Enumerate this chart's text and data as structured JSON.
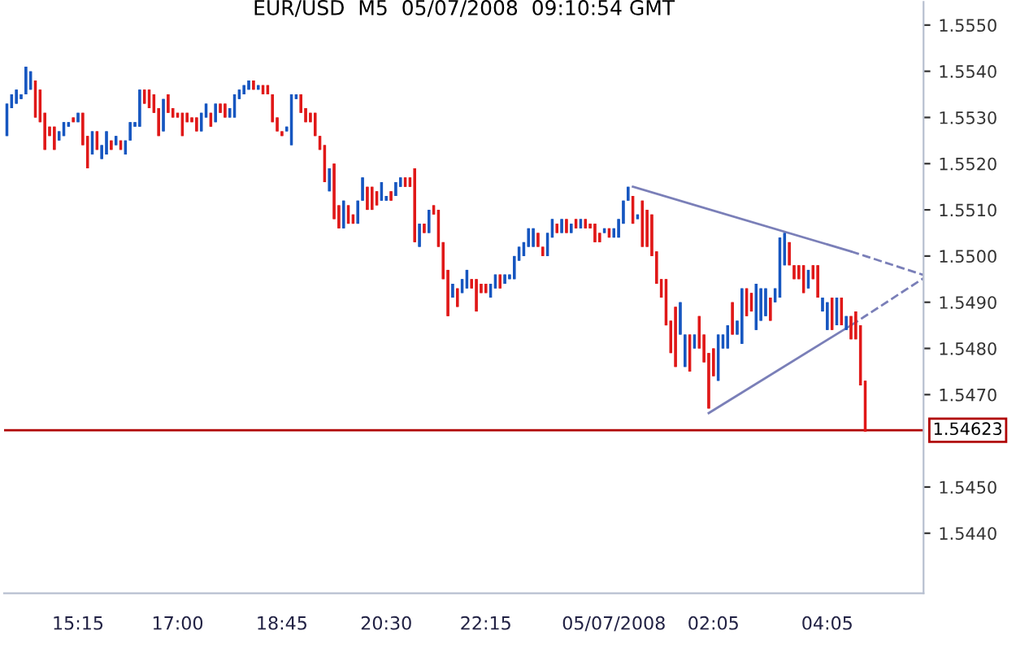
{
  "chart_data": {
    "type": "candlestick",
    "title": "EUR/USD  M5  05/07/2008  09:10:54 GMT",
    "categories": [
      null,
      null,
      null,
      null,
      null,
      null,
      null,
      null,
      null,
      null,
      null,
      null,
      null,
      null,
      null,
      "15:15",
      null,
      null,
      null,
      null,
      null,
      null,
      null,
      null,
      null,
      null,
      null,
      null,
      null,
      null,
      null,
      null,
      null,
      null,
      null,
      null,
      "17:00",
      null,
      null,
      null,
      null,
      null,
      null,
      null,
      null,
      null,
      null,
      null,
      null,
      null,
      null,
      null,
      null,
      null,
      null,
      null,
      null,
      null,
      "18:45",
      null,
      null,
      null,
      null,
      null,
      null,
      null,
      null,
      null,
      null,
      null,
      null,
      null,
      null,
      null,
      null,
      null,
      null,
      null,
      null,
      null,
      "20:30",
      null,
      null,
      null,
      null,
      null,
      null,
      null,
      null,
      null,
      null,
      null,
      null,
      null,
      null,
      null,
      null,
      null,
      null,
      null,
      null,
      "22:15",
      null,
      null,
      null,
      null,
      null,
      null,
      null,
      null,
      null,
      null,
      null,
      null,
      null,
      null,
      null,
      null,
      null,
      null,
      null,
      null,
      null,
      null,
      null,
      null,
      null,
      null,
      "05/07/2008",
      null,
      null,
      null,
      null,
      null,
      null,
      null,
      null,
      null,
      null,
      null,
      null,
      null,
      null,
      null,
      null,
      null,
      null,
      null,
      null,
      "02:05",
      null,
      null,
      null,
      null,
      null,
      null,
      null,
      null,
      null,
      null,
      null,
      null,
      null,
      null,
      null,
      null,
      null,
      null,
      null,
      null,
      null,
      null,
      null,
      "04:05",
      null,
      null,
      null,
      null,
      null,
      null,
      null,
      null
    ],
    "colors": [
      "#1656c0",
      "#1656c0",
      "#1656c0",
      "#1656c0",
      "#1656c0",
      "#1656c0",
      "#e01818",
      "#e01818",
      "#e01818",
      "#e01818",
      "#e01818",
      "#1656c0",
      "#1656c0",
      "#1656c0",
      "#e01818",
      "#1656c0",
      "#e01818",
      "#e01818",
      "#1656c0",
      "#e01818",
      "#1656c0",
      "#1656c0",
      "#e01818",
      "#1656c0",
      "#e01818",
      "#1656c0",
      "#1656c0",
      "#1656c0",
      "#1656c0",
      "#e01818",
      "#e01818",
      "#e01818",
      "#e01818",
      "#1656c0",
      "#e01818",
      "#e01818",
      "#e01818",
      "#e01818",
      "#e01818",
      "#e01818",
      "#e01818",
      "#1656c0",
      "#1656c0",
      "#e01818",
      "#1656c0",
      "#e01818",
      "#e01818",
      "#1656c0",
      "#1656c0",
      "#1656c0",
      "#1656c0",
      "#1656c0",
      "#e01818",
      "#1656c0",
      "#e01818",
      "#e01818",
      "#e01818",
      "#e01818",
      "#e01818",
      "#1656c0",
      "#1656c0",
      "#1656c0",
      "#e01818",
      "#e01818",
      "#e01818",
      "#e01818",
      "#e01818",
      "#e01818",
      "#1656c0",
      "#e01818",
      "#e01818",
      "#1656c0",
      "#e01818",
      "#e01818",
      "#1656c0",
      "#1656c0",
      "#e01818",
      "#e01818",
      "#e01818",
      "#1656c0",
      "#1656c0",
      "#e01818",
      "#1656c0",
      "#1656c0",
      "#e01818",
      "#e01818",
      "#e01818",
      "#1656c0",
      "#e01818",
      "#1656c0",
      "#e01818",
      "#e01818",
      "#e01818",
      "#e01818",
      "#1656c0",
      "#e01818",
      "#1656c0",
      "#1656c0",
      "#e01818",
      "#e01818",
      "#e01818",
      "#e01818",
      "#1656c0",
      "#1656c0",
      "#e01818",
      "#1656c0",
      "#1656c0",
      "#1656c0",
      "#1656c0",
      "#1656c0",
      "#1656c0",
      "#1656c0",
      "#e01818",
      "#e01818",
      "#1656c0",
      "#1656c0",
      "#e01818",
      "#1656c0",
      "#e01818",
      "#1656c0",
      "#e01818",
      "#1656c0",
      "#e01818",
      "#e01818",
      "#e01818",
      "#e01818",
      "#1656c0",
      "#e01818",
      "#1656c0",
      "#1656c0",
      "#1656c0",
      "#1656c0",
      "#e01818",
      "#1656c0",
      "#e01818",
      "#e01818",
      "#e01818",
      "#e01818",
      "#e01818",
      "#e01818",
      "#e01818",
      "#e01818",
      "#1656c0",
      "#1656c0",
      "#e01818",
      "#1656c0",
      "#e01818",
      "#e01818",
      "#e01818",
      "#e01818",
      "#1656c0",
      "#1656c0",
      "#1656c0",
      "#e01818",
      "#1656c0",
      "#1656c0",
      "#e01818",
      "#e01818",
      "#1656c0",
      "#1656c0",
      "#1656c0",
      "#e01818",
      "#1656c0",
      "#1656c0",
      "#1656c0",
      "#e01818",
      "#e01818",
      "#e01818",
      "#e01818",
      "#1656c0",
      "#e01818",
      "#e01818",
      "#1656c0",
      "#1656c0",
      "#e01818",
      "#1656c0",
      "#e01818",
      "#1656c0",
      "#e01818",
      "#e01818",
      "#e01818",
      "#e01818"
    ],
    "ohlc": [
      [
        1.5526,
        1.5533,
        1.5526,
        1.5533
      ],
      [
        1.5532,
        1.5535,
        1.5532,
        1.5535
      ],
      [
        1.5533,
        1.5536,
        1.5533,
        1.5536
      ],
      [
        1.5534,
        1.5535,
        1.5534,
        1.5535
      ],
      [
        1.5535,
        1.5541,
        1.5535,
        1.5541
      ],
      [
        1.5536,
        1.554,
        1.5536,
        1.554
      ],
      [
        1.5538,
        1.5538,
        1.553,
        1.553
      ],
      [
        1.5536,
        1.5536,
        1.5529,
        1.5529
      ],
      [
        1.5531,
        1.5531,
        1.5523,
        1.5523
      ],
      [
        1.5528,
        1.5528,
        1.5526,
        1.5526
      ],
      [
        1.5528,
        1.5528,
        1.5523,
        1.5523
      ],
      [
        1.5525,
        1.5527,
        1.5525,
        1.5527
      ],
      [
        1.5526,
        1.5529,
        1.5526,
        1.5529
      ],
      [
        1.5528,
        1.5529,
        1.5528,
        1.5529
      ],
      [
        1.553,
        1.553,
        1.5529,
        1.5529
      ],
      [
        1.5529,
        1.5531,
        1.5529,
        1.5531
      ],
      [
        1.5531,
        1.5531,
        1.5524,
        1.5524
      ],
      [
        1.5526,
        1.5526,
        1.5519,
        1.5519
      ],
      [
        1.5522,
        1.5527,
        1.5522,
        1.5527
      ],
      [
        1.5527,
        1.5527,
        1.5523,
        1.5523
      ],
      [
        1.5521,
        1.5524,
        1.5521,
        1.5524
      ],
      [
        1.5522,
        1.5527,
        1.5522,
        1.5527
      ],
      [
        1.5525,
        1.5525,
        1.5523,
        1.5523
      ],
      [
        1.5524,
        1.5526,
        1.5524,
        1.5526
      ],
      [
        1.5525,
        1.5525,
        1.5523,
        1.5523
      ],
      [
        1.5522,
        1.5525,
        1.5522,
        1.5525
      ],
      [
        1.5525,
        1.5529,
        1.5525,
        1.5529
      ],
      [
        1.5528,
        1.5529,
        1.5528,
        1.5529
      ],
      [
        1.5528,
        1.5536,
        1.5528,
        1.5536
      ],
      [
        1.5536,
        1.5536,
        1.5533,
        1.5533
      ],
      [
        1.5536,
        1.5536,
        1.5532,
        1.5532
      ],
      [
        1.5535,
        1.5535,
        1.5531,
        1.5531
      ],
      [
        1.5532,
        1.5532,
        1.5526,
        1.5526
      ],
      [
        1.5527,
        1.5534,
        1.5527,
        1.5534
      ],
      [
        1.5535,
        1.5535,
        1.5531,
        1.5531
      ],
      [
        1.5532,
        1.5532,
        1.553,
        1.553
      ],
      [
        1.5531,
        1.5531,
        1.553,
        1.553
      ],
      [
        1.5531,
        1.5531,
        1.5526,
        1.5526
      ],
      [
        1.5531,
        1.5531,
        1.5529,
        1.5529
      ],
      [
        1.553,
        1.553,
        1.5529,
        1.5529
      ],
      [
        1.553,
        1.553,
        1.5527,
        1.5527
      ],
      [
        1.5527,
        1.5531,
        1.5527,
        1.5531
      ],
      [
        1.553,
        1.5533,
        1.553,
        1.5533
      ],
      [
        1.5531,
        1.5531,
        1.5528,
        1.5528
      ],
      [
        1.5529,
        1.5533,
        1.5529,
        1.5533
      ],
      [
        1.5533,
        1.5533,
        1.5531,
        1.5531
      ],
      [
        1.5533,
        1.5533,
        1.553,
        1.553
      ],
      [
        1.553,
        1.5532,
        1.553,
        1.5532
      ],
      [
        1.553,
        1.5535,
        1.553,
        1.5535
      ],
      [
        1.5534,
        1.5536,
        1.5534,
        1.5536
      ],
      [
        1.5535,
        1.5537,
        1.5535,
        1.5537
      ],
      [
        1.5536,
        1.5538,
        1.5536,
        1.5538
      ],
      [
        1.5538,
        1.5538,
        1.5536,
        1.5536
      ],
      [
        1.5536,
        1.5537,
        1.5536,
        1.5537
      ],
      [
        1.5537,
        1.5537,
        1.5535,
        1.5535
      ],
      [
        1.5537,
        1.5537,
        1.5535,
        1.5535
      ],
      [
        1.5535,
        1.5535,
        1.5529,
        1.5529
      ],
      [
        1.553,
        1.553,
        1.5527,
        1.5527
      ],
      [
        1.5527,
        1.5527,
        1.5526,
        1.5526
      ],
      [
        1.5527,
        1.5528,
        1.5527,
        1.5528
      ],
      [
        1.5524,
        1.5535,
        1.5524,
        1.5535
      ],
      [
        1.5534,
        1.5535,
        1.5534,
        1.5535
      ],
      [
        1.5535,
        1.5535,
        1.5531,
        1.5531
      ],
      [
        1.5532,
        1.5532,
        1.5529,
        1.5529
      ],
      [
        1.5531,
        1.5531,
        1.5529,
        1.5529
      ],
      [
        1.5531,
        1.5531,
        1.5526,
        1.5526
      ],
      [
        1.5526,
        1.5526,
        1.5523,
        1.5523
      ],
      [
        1.5524,
        1.5524,
        1.5516,
        1.5516
      ],
      [
        1.5514,
        1.5519,
        1.5514,
        1.5519
      ],
      [
        1.552,
        1.552,
        1.5508,
        1.5508
      ],
      [
        1.5511,
        1.5511,
        1.5506,
        1.5506
      ],
      [
        1.5506,
        1.5512,
        1.5506,
        1.5512
      ],
      [
        1.5511,
        1.5511,
        1.5507,
        1.5507
      ],
      [
        1.5509,
        1.5509,
        1.5507,
        1.5507
      ],
      [
        1.5507,
        1.5512,
        1.5507,
        1.5512
      ],
      [
        1.5512,
        1.5517,
        1.5512,
        1.5517
      ],
      [
        1.5515,
        1.5515,
        1.551,
        1.551
      ],
      [
        1.5515,
        1.5515,
        1.551,
        1.551
      ],
      [
        1.5514,
        1.5514,
        1.5511,
        1.5511
      ],
      [
        1.5512,
        1.5516,
        1.5512,
        1.5516
      ],
      [
        1.5512,
        1.5513,
        1.5512,
        1.5513
      ],
      [
        1.5514,
        1.5514,
        1.5512,
        1.5512
      ],
      [
        1.5513,
        1.5516,
        1.5513,
        1.5516
      ],
      [
        1.5515,
        1.5517,
        1.5515,
        1.5517
      ],
      [
        1.5517,
        1.5517,
        1.5515,
        1.5515
      ],
      [
        1.5517,
        1.5517,
        1.5515,
        1.5515
      ],
      [
        1.5519,
        1.5519,
        1.5503,
        1.5503
      ],
      [
        1.5502,
        1.5507,
        1.5502,
        1.5507
      ],
      [
        1.5507,
        1.5507,
        1.5505,
        1.5505
      ],
      [
        1.5505,
        1.551,
        1.5505,
        1.551
      ],
      [
        1.5511,
        1.5511,
        1.5509,
        1.5509
      ],
      [
        1.551,
        1.551,
        1.5502,
        1.5502
      ],
      [
        1.5503,
        1.5503,
        1.5495,
        1.5495
      ],
      [
        1.5497,
        1.5497,
        1.5487,
        1.5487
      ],
      [
        1.5491,
        1.5494,
        1.5491,
        1.5494
      ],
      [
        1.5493,
        1.5493,
        1.5489,
        1.5489
      ],
      [
        1.5492,
        1.5495,
        1.5492,
        1.5495
      ],
      [
        1.5493,
        1.5497,
        1.5493,
        1.5497
      ],
      [
        1.5495,
        1.5495,
        1.5493,
        1.5493
      ],
      [
        1.5495,
        1.5495,
        1.5488,
        1.5488
      ],
      [
        1.5494,
        1.5494,
        1.5492,
        1.5492
      ],
      [
        1.5494,
        1.5494,
        1.5492,
        1.5492
      ],
      [
        1.5491,
        1.5494,
        1.5491,
        1.5494
      ],
      [
        1.5493,
        1.5496,
        1.5493,
        1.5496
      ],
      [
        1.5496,
        1.5496,
        1.5493,
        1.5493
      ],
      [
        1.5494,
        1.5496,
        1.5494,
        1.5496
      ],
      [
        1.5495,
        1.5496,
        1.5495,
        1.5496
      ],
      [
        1.5495,
        1.55,
        1.5495,
        1.55
      ],
      [
        1.5499,
        1.5502,
        1.5499,
        1.5502
      ],
      [
        1.55,
        1.5503,
        1.55,
        1.5503
      ],
      [
        1.5502,
        1.5506,
        1.5502,
        1.5506
      ],
      [
        1.5502,
        1.5506,
        1.5502,
        1.5506
      ],
      [
        1.5505,
        1.5505,
        1.5502,
        1.5502
      ],
      [
        1.5502,
        1.5502,
        1.55,
        1.55
      ],
      [
        1.55,
        1.5505,
        1.55,
        1.5505
      ],
      [
        1.5504,
        1.5508,
        1.5504,
        1.5508
      ],
      [
        1.5507,
        1.5507,
        1.5505,
        1.5505
      ],
      [
        1.5505,
        1.5508,
        1.5505,
        1.5508
      ],
      [
        1.5508,
        1.5508,
        1.5505,
        1.5505
      ],
      [
        1.5505,
        1.5507,
        1.5505,
        1.5507
      ],
      [
        1.5508,
        1.5508,
        1.5506,
        1.5506
      ],
      [
        1.5506,
        1.5508,
        1.5506,
        1.5508
      ],
      [
        1.5508,
        1.5508,
        1.5506,
        1.5506
      ],
      [
        1.5507,
        1.5507,
        1.5506,
        1.5506
      ],
      [
        1.5507,
        1.5507,
        1.5503,
        1.5503
      ],
      [
        1.5505,
        1.5505,
        1.5503,
        1.5503
      ],
      [
        1.5505,
        1.5506,
        1.5505,
        1.5506
      ],
      [
        1.5506,
        1.5506,
        1.5504,
        1.5504
      ],
      [
        1.5504,
        1.5506,
        1.5504,
        1.5506
      ],
      [
        1.5504,
        1.5508,
        1.5504,
        1.5508
      ],
      [
        1.5507,
        1.5512,
        1.5507,
        1.5512
      ],
      [
        1.5512,
        1.5515,
        1.5512,
        1.5515
      ],
      [
        1.5513,
        1.5513,
        1.5507,
        1.5507
      ],
      [
        1.5508,
        1.5509,
        1.5508,
        1.5509
      ],
      [
        1.5512,
        1.5512,
        1.5502,
        1.5502
      ],
      [
        1.551,
        1.551,
        1.5502,
        1.5502
      ],
      [
        1.5509,
        1.5509,
        1.55,
        1.55
      ],
      [
        1.5501,
        1.5501,
        1.5494,
        1.5494
      ],
      [
        1.5495,
        1.5495,
        1.5491,
        1.5491
      ],
      [
        1.5495,
        1.5495,
        1.5485,
        1.5485
      ],
      [
        1.5486,
        1.5486,
        1.5479,
        1.5479
      ],
      [
        1.5489,
        1.5489,
        1.5476,
        1.5476
      ],
      [
        1.5483,
        1.549,
        1.5483,
        1.549
      ],
      [
        1.5476,
        1.5483,
        1.5476,
        1.5483
      ],
      [
        1.5483,
        1.5483,
        1.5475,
        1.5475
      ],
      [
        1.548,
        1.5483,
        1.548,
        1.5483
      ],
      [
        1.5487,
        1.5487,
        1.548,
        1.548
      ],
      [
        1.5483,
        1.5483,
        1.5477,
        1.5477
      ],
      [
        1.5479,
        1.5479,
        1.5467,
        1.5467
      ],
      [
        1.548,
        1.548,
        1.5474,
        1.5474
      ],
      [
        1.5473,
        1.5483,
        1.5473,
        1.5483
      ],
      [
        1.548,
        1.5483,
        1.548,
        1.5483
      ],
      [
        1.548,
        1.5485,
        1.548,
        1.5485
      ],
      [
        1.549,
        1.549,
        1.5483,
        1.5483
      ],
      [
        1.5483,
        1.5486,
        1.5483,
        1.5486
      ],
      [
        1.5481,
        1.5493,
        1.5481,
        1.5493
      ],
      [
        1.5493,
        1.5493,
        1.5487,
        1.5487
      ],
      [
        1.5492,
        1.5492,
        1.5488,
        1.5488
      ],
      [
        1.5484,
        1.5494,
        1.5484,
        1.5494
      ],
      [
        1.5486,
        1.5493,
        1.5486,
        1.5493
      ],
      [
        1.5487,
        1.5493,
        1.5487,
        1.5493
      ],
      [
        1.5491,
        1.5491,
        1.5486,
        1.5486
      ],
      [
        1.549,
        1.5493,
        1.549,
        1.5493
      ],
      [
        1.5491,
        1.5504,
        1.5491,
        1.5504
      ],
      [
        1.5498,
        1.5505,
        1.5498,
        1.5505
      ],
      [
        1.5503,
        1.5503,
        1.5498,
        1.5498
      ],
      [
        1.5498,
        1.5498,
        1.5495,
        1.5495
      ],
      [
        1.5498,
        1.5498,
        1.5495,
        1.5495
      ],
      [
        1.5498,
        1.5498,
        1.5492,
        1.5492
      ],
      [
        1.5493,
        1.5497,
        1.5493,
        1.5497
      ],
      [
        1.5498,
        1.5498,
        1.5495,
        1.5495
      ],
      [
        1.5498,
        1.5498,
        1.5491,
        1.5491
      ],
      [
        1.5488,
        1.5491,
        1.5488,
        1.5491
      ],
      [
        1.5484,
        1.549,
        1.5484,
        1.549
      ],
      [
        1.5491,
        1.5491,
        1.5484,
        1.5484
      ],
      [
        1.5485,
        1.5491,
        1.5485,
        1.5491
      ],
      [
        1.5491,
        1.5491,
        1.5485,
        1.5485
      ],
      [
        1.5484,
        1.5487,
        1.5484,
        1.5487
      ],
      [
        1.5487,
        1.5487,
        1.5482,
        1.5482
      ],
      [
        1.5488,
        1.5488,
        1.5482,
        1.5482
      ],
      [
        1.5485,
        1.5485,
        1.5472,
        1.5472
      ],
      [
        1.5473,
        1.5473,
        1.5462,
        1.5462
      ]
    ],
    "series": [
      {
        "type": "line",
        "color": "#7a7fb8",
        "line_style": "solid",
        "values": [
          null,
          null,
          null,
          null,
          null,
          null,
          null,
          null,
          null,
          null,
          null,
          null,
          null,
          null,
          null,
          null,
          null,
          null,
          null,
          null,
          null,
          null,
          null,
          null,
          null,
          null,
          null,
          null,
          null,
          null,
          null,
          null,
          null,
          null,
          null,
          null,
          null,
          null,
          null,
          null,
          null,
          null,
          null,
          null,
          null,
          null,
          null,
          null,
          null,
          null,
          null,
          null,
          null,
          null,
          null,
          null,
          null,
          null,
          null,
          null,
          null,
          null,
          null,
          null,
          null,
          null,
          null,
          null,
          null,
          null,
          null,
          null,
          null,
          null,
          null,
          null,
          null,
          null,
          null,
          null,
          null,
          null,
          null,
          null,
          null,
          null,
          null,
          null,
          null,
          null,
          null,
          null,
          null,
          null,
          null,
          null,
          null,
          null,
          null,
          null,
          null,
          null,
          null,
          null,
          null,
          null,
          null,
          null,
          null,
          null,
          null,
          null,
          null,
          null,
          null,
          null,
          null,
          null,
          null,
          null,
          null,
          null,
          null,
          null,
          null,
          null,
          null,
          null,
          null,
          null,
          null,
          null,
          1.5515,
          null,
          null,
          null,
          null,
          null,
          null,
          null,
          null,
          null,
          null,
          null,
          null,
          null,
          null,
          null,
          null,
          null,
          null,
          null,
          null,
          null,
          null,
          null,
          null,
          null,
          null,
          null,
          null,
          null,
          null,
          null,
          null,
          null,
          null,
          null,
          null,
          null,
          null,
          null,
          null,
          null,
          null,
          null,
          null,
          null,
          1.5501,
          null,
          null,
          null
        ]
      },
      {
        "type": "line",
        "color": "#7a7fb8",
        "line_style": "dashed",
        "values": [
          null,
          null,
          null,
          null,
          null,
          null,
          null,
          null,
          null,
          null,
          null,
          null,
          null,
          null,
          null,
          null,
          null,
          null,
          null,
          null,
          null,
          null,
          null,
          null,
          null,
          null,
          null,
          null,
          null,
          null,
          null,
          null,
          null,
          null,
          null,
          null,
          null,
          null,
          null,
          null,
          null,
          null,
          null,
          null,
          null,
          null,
          null,
          null,
          null,
          null,
          null,
          null,
          null,
          null,
          null,
          null,
          null,
          null,
          null,
          null,
          null,
          null,
          null,
          null,
          null,
          null,
          null,
          null,
          null,
          null,
          null,
          null,
          null,
          null,
          null,
          null,
          null,
          null,
          null,
          null,
          null,
          null,
          null,
          null,
          null,
          null,
          null,
          null,
          null,
          null,
          null,
          null,
          null,
          null,
          null,
          null,
          null,
          null,
          null,
          null,
          null,
          null,
          null,
          null,
          null,
          null,
          null,
          null,
          null,
          null,
          null,
          null,
          null,
          null,
          null,
          null,
          null,
          null,
          null,
          null,
          null,
          null,
          null,
          null,
          null,
          null,
          null,
          null,
          null,
          null,
          null,
          null,
          null,
          null,
          null,
          null,
          null,
          null,
          null,
          null,
          null,
          null,
          null,
          null,
          null,
          null,
          null,
          null,
          null,
          null,
          null,
          null,
          null,
          null,
          null,
          null,
          null,
          null,
          null,
          null,
          null,
          null,
          null,
          null,
          null,
          null,
          null,
          null,
          null,
          null,
          null,
          null,
          null,
          null,
          null,
          null,
          null,
          null,
          1.5501,
          null,
          null,
          1.55
        ]
      },
      {
        "type": "line",
        "color": "#7a7fb8",
        "line_style": "solid",
        "values": [
          null,
          null,
          null,
          null,
          null,
          null,
          null,
          null,
          null,
          null,
          null,
          null,
          null,
          null,
          null,
          null,
          null,
          null,
          null,
          null,
          null,
          null,
          null,
          null,
          null,
          null,
          null,
          null,
          null,
          null,
          null,
          null,
          null,
          null,
          null,
          null,
          null,
          null,
          null,
          null,
          null,
          null,
          null,
          null,
          null,
          null,
          null,
          null,
          null,
          null,
          null,
          null,
          null,
          null,
          null,
          null,
          null,
          null,
          null,
          null,
          null,
          null,
          null,
          null,
          null,
          null,
          null,
          null,
          null,
          null,
          null,
          null,
          null,
          null,
          null,
          null,
          null,
          null,
          null,
          null,
          null,
          null,
          null,
          null,
          null,
          null,
          null,
          null,
          null,
          null,
          null,
          null,
          null,
          null,
          null,
          null,
          null,
          null,
          null,
          null,
          null,
          null,
          null,
          null,
          null,
          null,
          null,
          null,
          null,
          null,
          null,
          null,
          null,
          null,
          null,
          null,
          null,
          null,
          null,
          null,
          null,
          null,
          null,
          null,
          null,
          null,
          null,
          null,
          null,
          null,
          null,
          null,
          null,
          null,
          null,
          null,
          null,
          null,
          null,
          null,
          null,
          null,
          null,
          null,
          null,
          null,
          null,
          null,
          1.5466,
          null,
          null,
          null,
          null,
          null,
          null,
          null,
          null,
          null,
          null,
          null,
          null,
          null,
          null,
          null,
          null,
          null,
          null,
          null,
          null,
          null,
          null,
          null,
          null,
          null,
          null,
          null,
          null,
          null,
          1.5485,
          null,
          null,
          null
        ]
      },
      {
        "type": "line",
        "color": "#7a7fb8",
        "line_style": "dashed",
        "values": [
          null,
          null,
          null,
          null,
          null,
          null,
          null,
          null,
          null,
          null,
          null,
          null,
          null,
          null,
          null,
          null,
          null,
          null,
          null,
          null,
          null,
          null,
          null,
          null,
          null,
          null,
          null,
          null,
          null,
          null,
          null,
          null,
          null,
          null,
          null,
          null,
          null,
          null,
          null,
          null,
          null,
          null,
          null,
          null,
          null,
          null,
          null,
          null,
          null,
          null,
          null,
          null,
          null,
          null,
          null,
          null,
          null,
          null,
          null,
          null,
          null,
          null,
          null,
          null,
          null,
          null,
          null,
          null,
          null,
          null,
          null,
          null,
          null,
          null,
          null,
          null,
          null,
          null,
          null,
          null,
          null,
          null,
          null,
          null,
          null,
          null,
          null,
          null,
          null,
          null,
          null,
          null,
          null,
          null,
          null,
          null,
          null,
          null,
          null,
          null,
          null,
          null,
          null,
          null,
          null,
          null,
          null,
          null,
          null,
          null,
          null,
          null,
          null,
          null,
          null,
          null,
          null,
          null,
          null,
          null,
          null,
          null,
          null,
          null,
          null,
          null,
          null,
          null,
          null,
          null,
          null,
          null,
          null,
          null,
          null,
          null,
          null,
          null,
          null,
          null,
          null,
          null,
          null,
          null,
          null,
          null,
          null,
          null,
          null,
          null,
          null,
          null,
          null,
          null,
          null,
          null,
          null,
          null,
          null,
          null,
          null,
          null,
          null,
          null,
          null,
          null,
          null,
          null,
          null,
          null,
          null,
          null,
          null,
          null,
          null,
          null,
          null,
          null,
          1.5485,
          null,
          null,
          1.5487
        ]
      }
    ],
    "ref_lines": [
      {
        "axis": "y",
        "value": 1.54623,
        "label": "1.54623",
        "color": "#b00000",
        "line_style": "solid"
      }
    ],
    "ylim": [
      1.5427,
      1.5555
    ],
    "yticks": [
      {
        "value": 1.544,
        "label": "1.5440"
      },
      {
        "value": 1.545,
        "label": "1.5450"
      },
      {
        "value": 1.547,
        "label": "1.5470"
      },
      {
        "value": 1.548,
        "label": "1.5480"
      },
      {
        "value": 1.549,
        "label": "1.5490"
      },
      {
        "value": 1.55,
        "label": "1.5500"
      },
      {
        "value": 1.551,
        "label": "1.5510"
      },
      {
        "value": 1.552,
        "label": "1.5520"
      },
      {
        "value": 1.553,
        "label": "1.5530"
      },
      {
        "value": 1.554,
        "label": "1.5540"
      },
      {
        "value": 1.555,
        "label": "1.5550"
      }
    ],
    "grid": false,
    "legend": false
  }
}
